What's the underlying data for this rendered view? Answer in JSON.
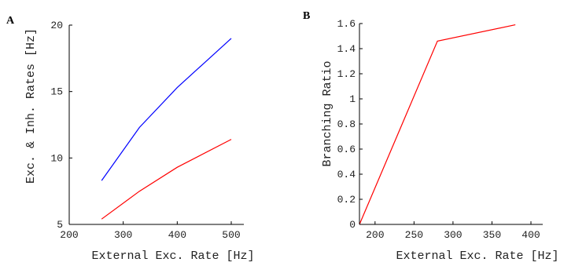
{
  "chart_data": [
    {
      "type": "line",
      "panel_label": "A",
      "xlabel": "External Exc. Rate [Hz]",
      "ylabel": "Exc. & Inh. Rates [Hz]",
      "xlim": [
        200,
        500
      ],
      "ylim": [
        5,
        20
      ],
      "xticks": [
        "200",
        "300",
        "400",
        "500"
      ],
      "yticks": [
        "5",
        "10",
        "15",
        "20"
      ],
      "xtick_values": [
        200,
        300,
        400,
        500
      ],
      "ytick_values": [
        5,
        10,
        15,
        20
      ],
      "grid": false,
      "series": [
        {
          "color": "#0000ff",
          "x": [
            260,
            330,
            400,
            500
          ],
          "y": [
            8.3,
            12.3,
            15.3,
            19.0
          ]
        },
        {
          "color": "#ff0000",
          "x": [
            260,
            330,
            400,
            500
          ],
          "y": [
            5.4,
            7.5,
            9.3,
            11.4
          ]
        }
      ]
    },
    {
      "type": "line",
      "panel_label": "B",
      "xlabel": "External Exc. Rate [Hz]",
      "ylabel": "Branching Ratio",
      "xlim": [
        180,
        400
      ],
      "ylim": [
        0,
        1.6
      ],
      "xticks": [
        "200",
        "250",
        "300",
        "350",
        "400"
      ],
      "yticks": [
        "0",
        "0.2",
        "0.4",
        "0.6",
        "0.8",
        "1",
        "1.2",
        "1.4",
        "1.6"
      ],
      "xtick_values": [
        200,
        250,
        300,
        350,
        400
      ],
      "ytick_values": [
        0,
        0.2,
        0.4,
        0.6,
        0.8,
        1.0,
        1.2,
        1.4,
        1.6
      ],
      "grid": false,
      "series": [
        {
          "color": "#ff0000",
          "x": [
            180,
            280,
            380
          ],
          "y": [
            0,
            1.46,
            1.59
          ]
        }
      ]
    }
  ]
}
